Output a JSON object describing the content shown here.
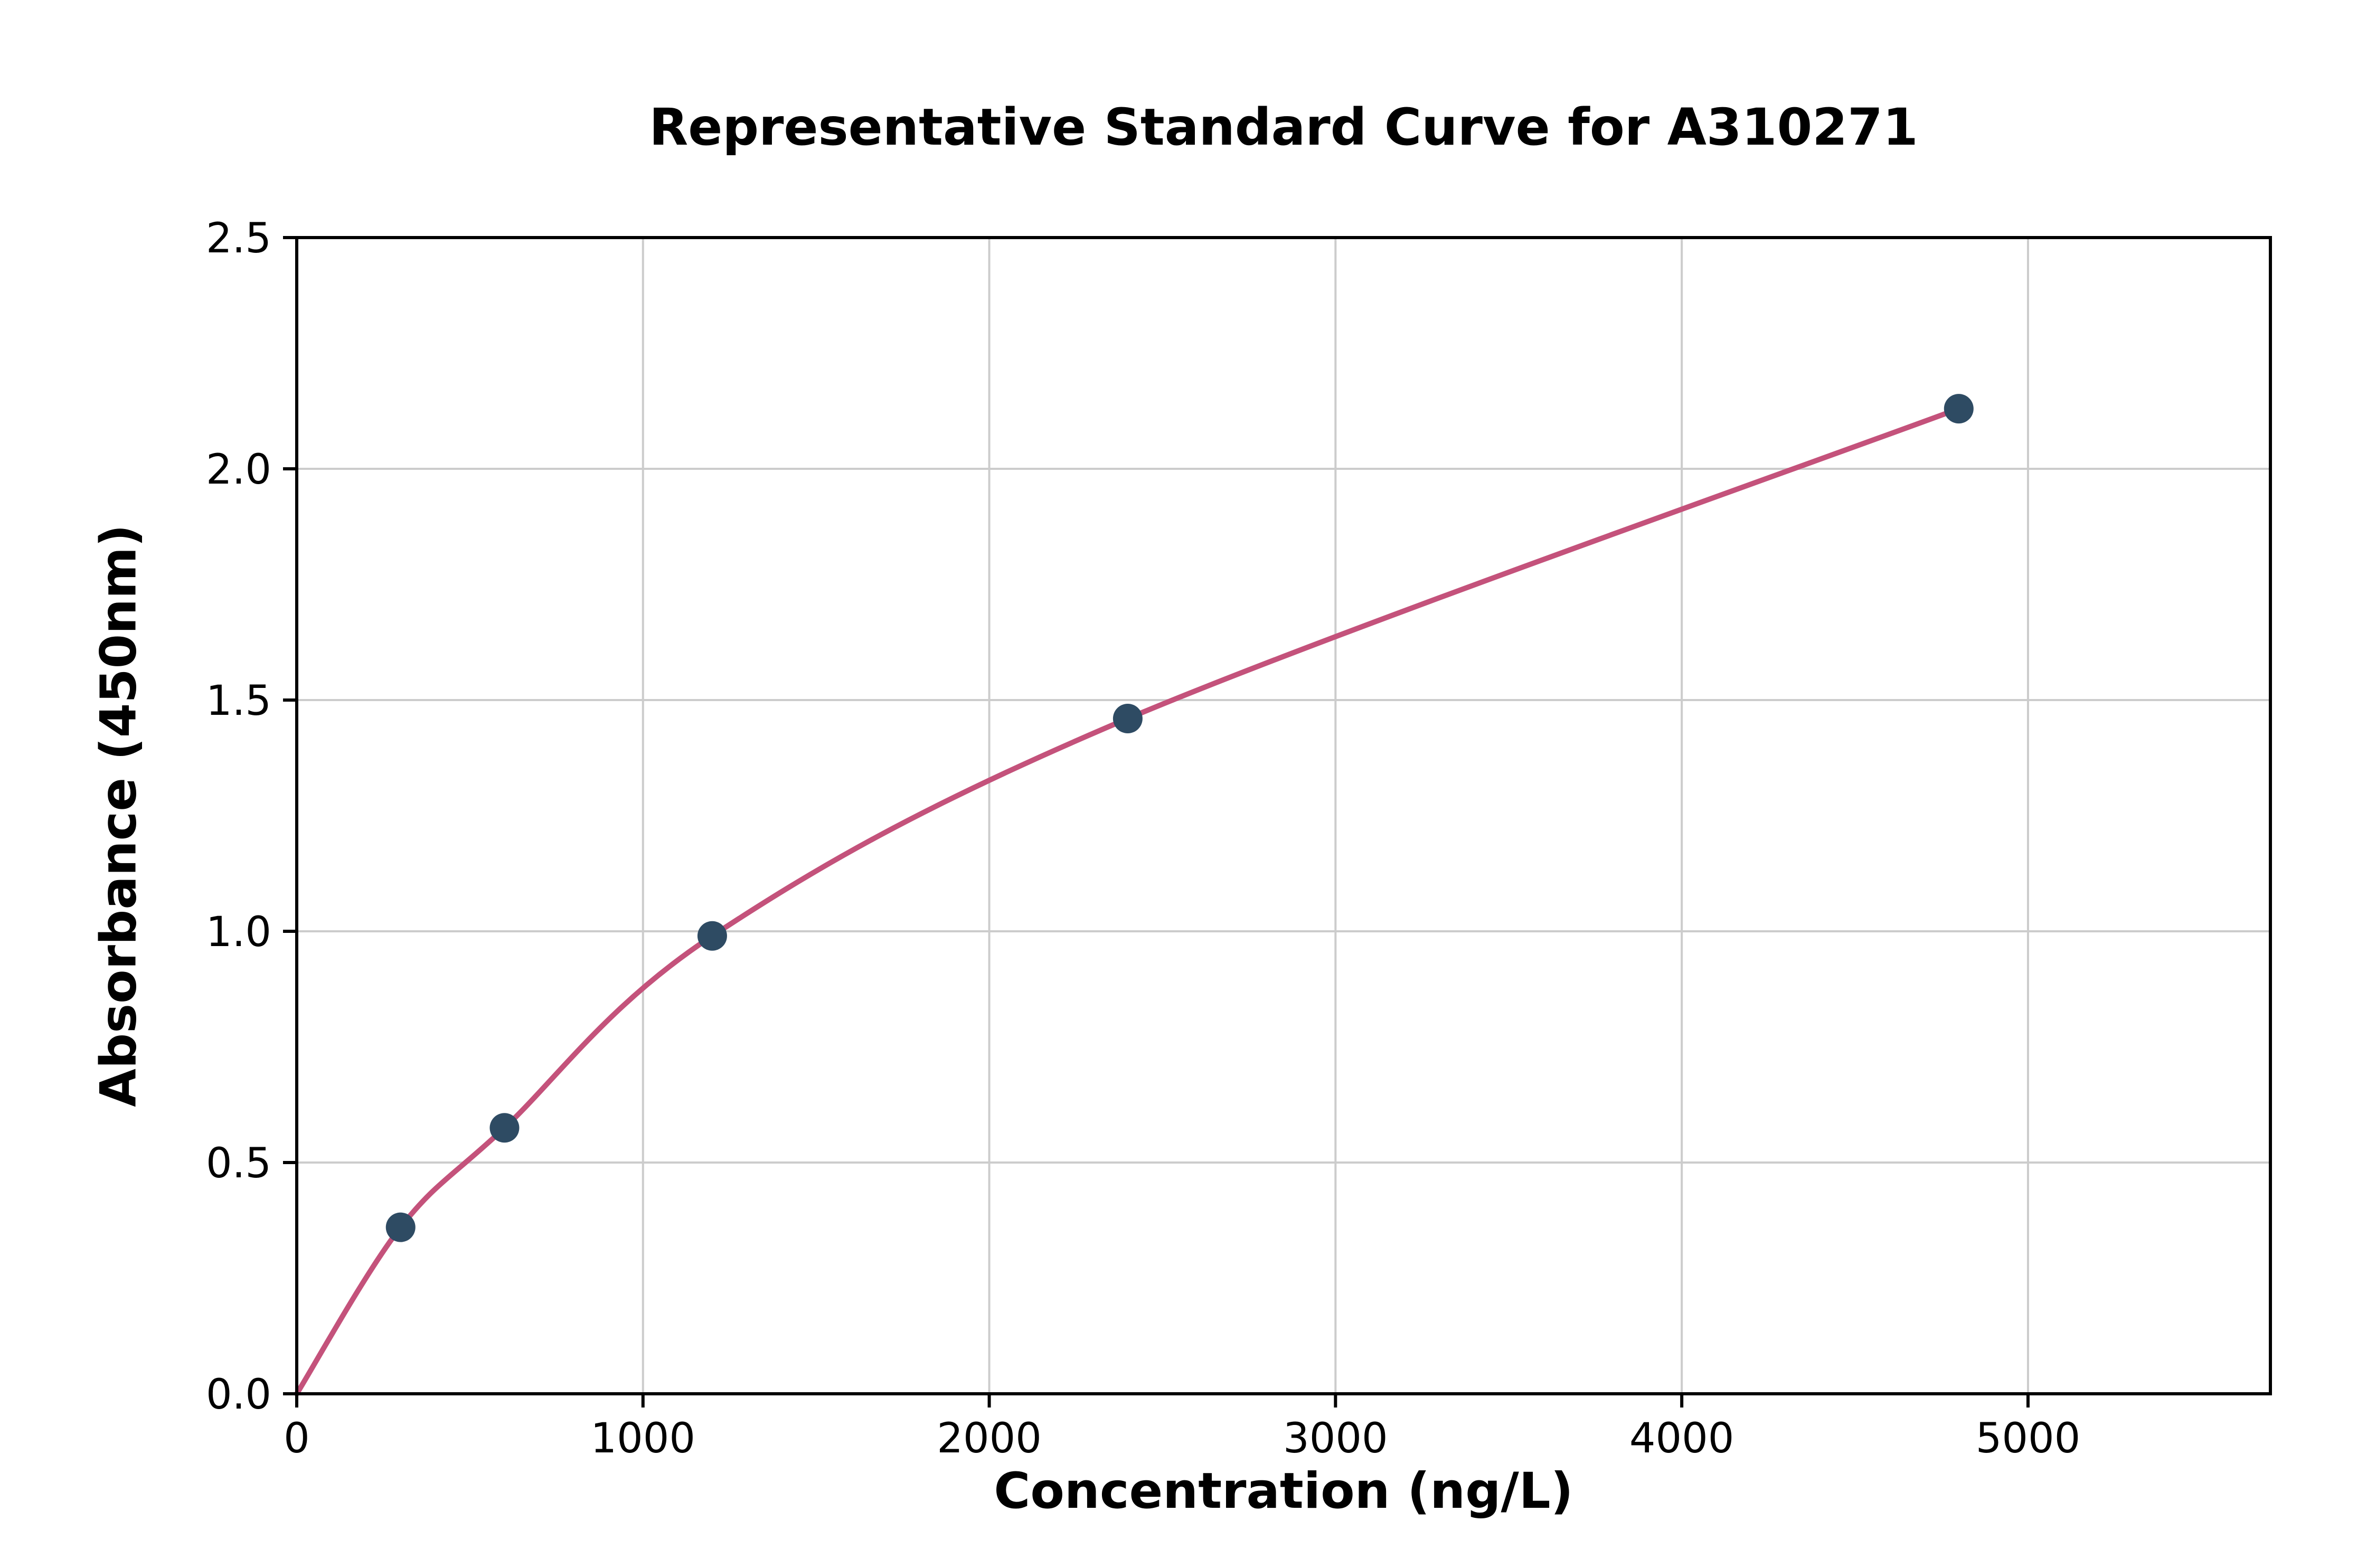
{
  "chart_data": {
    "type": "scatter",
    "title": "Representative Standard Curve for A310271",
    "xlabel": "Concentration (ng/L)",
    "ylabel": "Absorbance (450nm)",
    "points": {
      "x": [
        300,
        600,
        1200,
        2400,
        4800
      ],
      "y": [
        0.36,
        0.575,
        0.99,
        1.46,
        2.13
      ]
    },
    "curve": {
      "type": "smooth-through-points",
      "start_x": 0,
      "start_y": 0
    },
    "xlim": [
      0,
      5700
    ],
    "ylim": [
      0,
      2.5
    ],
    "xticks": [
      0,
      1000,
      2000,
      3000,
      4000,
      5000
    ],
    "yticks": [
      0,
      0.5,
      1.0,
      1.5,
      2.0,
      2.5
    ],
    "xtick_labels": [
      "0",
      "1000",
      "2000",
      "3000",
      "4000",
      "5000"
    ],
    "ytick_labels": [
      "0.0",
      "0.5",
      "1.0",
      "1.5",
      "2.0",
      "2.5"
    ],
    "grid": true,
    "legend": "none",
    "colors": {
      "curve": "#c4527b",
      "point": "#2e4b63",
      "grid": "#cccccc",
      "axis": "#000000",
      "background": "#ffffff"
    }
  }
}
